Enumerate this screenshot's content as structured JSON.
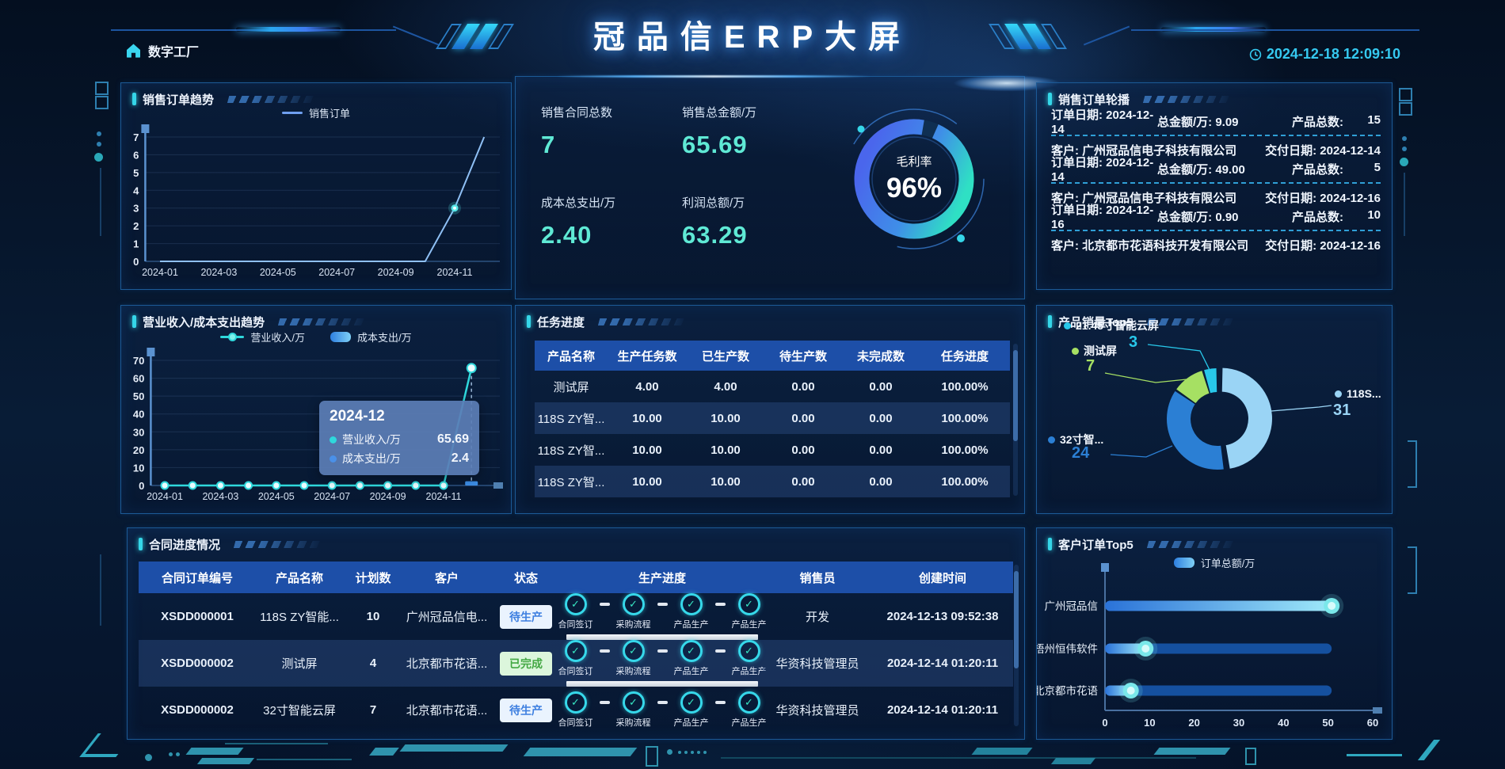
{
  "header": {
    "logo": "数字工厂",
    "title": "冠品信ERP大屏",
    "datetime": "2024-12-18 12:09:10"
  },
  "labels": {
    "order_date": "订单日期:",
    "total_amount": "总金额/万:",
    "product_total": "产品总数:",
    "customer": "客户:",
    "deliver_date": "交付日期:"
  },
  "panels": {
    "sales_trend": {
      "title": "销售订单趋势"
    },
    "kpi": {
      "items": [
        {
          "label": "销售合同总数",
          "value": "7"
        },
        {
          "label": "销售总金额/万",
          "value": "65.69"
        },
        {
          "label": "成本总支出/万",
          "value": "2.40"
        },
        {
          "label": "利润总额/万",
          "value": "63.29"
        }
      ],
      "gauge": {
        "label": "毛利率",
        "value": "96%"
      }
    },
    "order_carousel": {
      "title": "销售订单轮播",
      "items": [
        {
          "order_date": "2024-12-14",
          "amount": "9.09",
          "count": "15"
        },
        {
          "customer": "广州冠品信电子科技有限公司",
          "deliver_date": "2024-12-14",
          "order_date": "2024-12-14",
          "amount": "49.00",
          "count": "5"
        },
        {
          "customer": "广州冠品信电子科技有限公司",
          "deliver_date": "2024-12-16",
          "order_date": "2024-12-16",
          "amount": "0.90",
          "count": "10"
        },
        {
          "customer": "北京都市花语科技开发有限公司",
          "deliver_date": "2024-12-16"
        }
      ]
    },
    "revenue_trend": {
      "title": "营业收入/成本支出趋势"
    },
    "task_progress": {
      "title": "任务进度",
      "headers": [
        "产品名称",
        "生产任务数",
        "已生产数",
        "待生产数",
        "未完成数",
        "任务进度"
      ],
      "rows": [
        [
          "测试屏",
          "4.00",
          "4.00",
          "0.00",
          "0.00",
          "100.00%"
        ],
        [
          "118S ZY智...",
          "10.00",
          "10.00",
          "0.00",
          "0.00",
          "100.00%"
        ],
        [
          "118S ZY智...",
          "10.00",
          "10.00",
          "0.00",
          "0.00",
          "100.00%"
        ],
        [
          "118S ZY智...",
          "10.00",
          "10.00",
          "0.00",
          "0.00",
          "100.00%"
        ]
      ]
    },
    "product_top5": {
      "title": "产品销量Top5"
    },
    "contract_progress": {
      "title": "合同进度情况",
      "headers": [
        "合同订单编号",
        "产品名称",
        "计划数",
        "客户",
        "状态",
        "生产进度",
        "销售员",
        "创建时间"
      ],
      "step_labels": [
        "合同签订",
        "采购流程",
        "产品生产",
        "产品生产"
      ],
      "rows": [
        {
          "code": "XSDD000001",
          "product": "118S ZY智能...",
          "qty": "10",
          "customer": "广州冠品信电...",
          "status": "待生产",
          "status_type": "pending",
          "seller": "开发",
          "created": "2024-12-13 09:52:38",
          "show_bar": true
        },
        {
          "code": "XSDD000002",
          "product": "测试屏",
          "qty": "4",
          "customer": "北京都市花语...",
          "status": "已完成",
          "status_type": "done",
          "seller": "华资科技管理员",
          "created": "2024-12-14 01:20:11",
          "show_bar": true
        },
        {
          "code": "XSDD000002",
          "product": "32寸智能云屏",
          "qty": "7",
          "customer": "北京都市花语...",
          "status": "待生产",
          "status_type": "pending",
          "seller": "华资科技管理员",
          "created": "2024-12-14 01:20:11",
          "show_bar": false
        }
      ]
    },
    "customer_top5": {
      "title": "客户订单Top5"
    }
  },
  "chart_data": [
    {
      "id": "sales_order_trend",
      "type": "line",
      "title": "销售订单趋势",
      "legend": [
        "销售订单"
      ],
      "x": [
        "2024-01",
        "2024-02",
        "2024-03",
        "2024-04",
        "2024-05",
        "2024-06",
        "2024-07",
        "2024-08",
        "2024-09",
        "2024-10",
        "2024-11",
        "2024-12"
      ],
      "x_ticks_shown": [
        "2024-01",
        "2024-03",
        "2024-05",
        "2024-07",
        "2024-09",
        "2024-11"
      ],
      "series": [
        {
          "name": "销售订单",
          "values": [
            0,
            0,
            0,
            0,
            0,
            0,
            0,
            0,
            0,
            0,
            3,
            7
          ]
        }
      ],
      "ylim": [
        0,
        7
      ],
      "y_step": 1,
      "grid": true,
      "legend_position": "top"
    },
    {
      "id": "gross_margin_gauge",
      "type": "gauge",
      "label": "毛利率",
      "value": 96,
      "max": 100,
      "unit": "%"
    },
    {
      "id": "revenue_cost_trend",
      "type": "line+bar",
      "title": "营业收入/成本支出趋势",
      "x": [
        "2024-01",
        "2024-02",
        "2024-03",
        "2024-04",
        "2024-05",
        "2024-06",
        "2024-07",
        "2024-08",
        "2024-09",
        "2024-10",
        "2024-11",
        "2024-12"
      ],
      "x_ticks_shown": [
        "2024-01",
        "2024-03",
        "2024-05",
        "2024-07",
        "2024-09",
        "2024-11"
      ],
      "series": [
        {
          "name": "营业收入/万",
          "type": "line",
          "values": [
            0,
            0,
            0,
            0,
            0,
            0,
            0,
            0,
            0,
            0,
            0,
            65.69
          ]
        },
        {
          "name": "成本支出/万",
          "type": "bar",
          "values": [
            0,
            0,
            0,
            0,
            0,
            0,
            0,
            0,
            0,
            0,
            0,
            2.4
          ]
        }
      ],
      "ylim": [
        0,
        70
      ],
      "y_step": 10,
      "tooltip": {
        "x": "2024-12",
        "rows": [
          {
            "name": "营业收入/万",
            "value": "65.69"
          },
          {
            "name": "成本支出/万",
            "value": "2.4"
          }
        ]
      }
    },
    {
      "id": "product_sales_top5",
      "type": "pie",
      "title": "产品销量Top5",
      "donut": true,
      "items": [
        {
          "name": "118S...",
          "value": 31,
          "color": "#9ad4f5"
        },
        {
          "name": "32寸智...",
          "value": 24,
          "color": "#2b7fd4"
        },
        {
          "name": "测试屏",
          "value": 7,
          "color": "#a6e063"
        },
        {
          "name": "21.45寸智能云屏",
          "value": 3,
          "color": "#28c8ea"
        }
      ]
    },
    {
      "id": "customer_orders_top5",
      "type": "bar-horizontal",
      "title": "客户订单Top5",
      "legend": [
        "订单总额/万"
      ],
      "categories": [
        "广州冠品信",
        "梧州恒伟软件",
        "北京都市花语"
      ],
      "values": [
        50.8,
        9.1,
        5.8
      ],
      "xlim": [
        0,
        60
      ],
      "x_step": 10
    }
  ],
  "colors": {
    "accent_cyan": "#35d6e8",
    "kpi_value": "#5fe9d5",
    "timestamp": "#35c9f0",
    "table_header": "#1d4fa8",
    "row_alt": "#2c4e86",
    "badge_pending_text": "#3d7fe0",
    "badge_done_text": "#43a843",
    "line1": "#8fc0f5",
    "line2": "#2fd8dc",
    "bar2": "#3d8fe8",
    "pie": [
      "#9ad4f5",
      "#2b7fd4",
      "#a6e063",
      "#28c8ea"
    ],
    "lollipop_track": "#15509f",
    "lollipop_dot": "#7ae8ea"
  }
}
